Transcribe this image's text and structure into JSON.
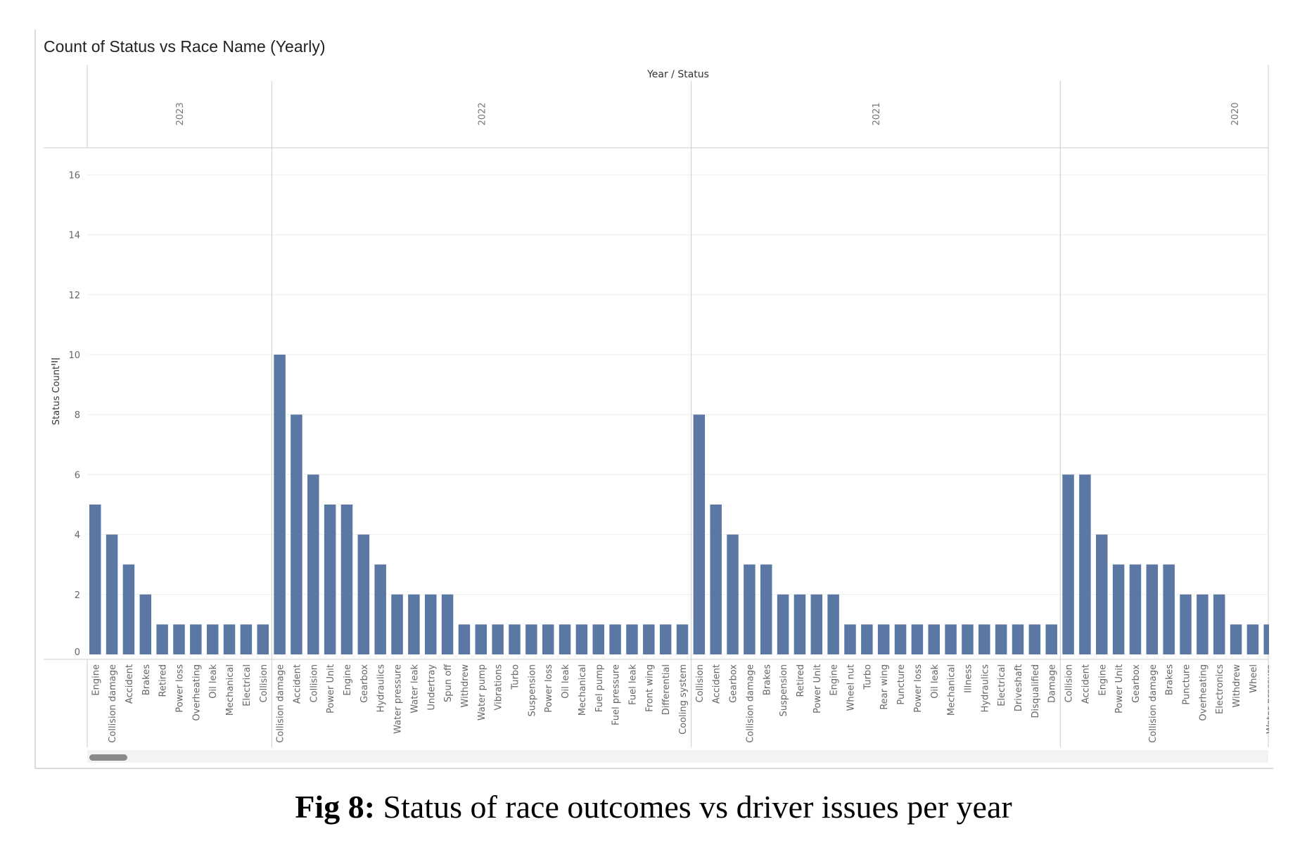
{
  "caption": {
    "prefix": "Fig 8:",
    "text": " Status of race outcomes vs driver issues per year"
  },
  "chart_data": {
    "type": "bar",
    "title": "Count of Status vs Race Name (Yearly)",
    "column_header": "Year / Status",
    "ylabel": "Status Count",
    "ylim": [
      0,
      17
    ],
    "yticks": [
      0,
      2,
      4,
      6,
      8,
      10,
      12,
      14,
      16
    ],
    "grid": true,
    "color": "#5b78a5",
    "groups": [
      {
        "year": "2023",
        "categories": [
          "Engine",
          "Collision damage",
          "Accident",
          "Brakes",
          "Retired",
          "Power loss",
          "Overheating",
          "Oil leak",
          "Mechanical",
          "Electrical",
          "Collision"
        ],
        "values": [
          5,
          4,
          3,
          2,
          1,
          1,
          1,
          1,
          1,
          1,
          1
        ]
      },
      {
        "year": "2022",
        "categories": [
          "Collision damage",
          "Accident",
          "Collision",
          "Power Unit",
          "Engine",
          "Gearbox",
          "Hydraulics",
          "Water pressure",
          "Water leak",
          "Undertray",
          "Spun off",
          "Withdrew",
          "Water pump",
          "Vibrations",
          "Turbo",
          "Suspension",
          "Power loss",
          "Oil leak",
          "Mechanical",
          "Fuel pump",
          "Fuel pressure",
          "Fuel leak",
          "Front wing",
          "Differential",
          "Cooling system"
        ],
        "values": [
          10,
          8,
          6,
          5,
          5,
          4,
          3,
          2,
          2,
          2,
          2,
          1,
          1,
          1,
          1,
          1,
          1,
          1,
          1,
          1,
          1,
          1,
          1,
          1,
          1
        ]
      },
      {
        "year": "2021",
        "categories": [
          "Collision",
          "Accident",
          "Gearbox",
          "Collision damage",
          "Brakes",
          "Suspension",
          "Retired",
          "Power Unit",
          "Engine",
          "Wheel nut",
          "Turbo",
          "Rear wing",
          "Puncture",
          "Power loss",
          "Oil leak",
          "Mechanical",
          "Illness",
          "Hydraulics",
          "Electrical",
          "Driveshaft",
          "Disqualified",
          "Damage"
        ],
        "values": [
          8,
          5,
          4,
          3,
          3,
          2,
          2,
          2,
          2,
          1,
          1,
          1,
          1,
          1,
          1,
          1,
          1,
          1,
          1,
          1,
          1,
          1
        ]
      },
      {
        "year": "2020",
        "categories": [
          "Collision",
          "Accident",
          "Engine",
          "Power Unit",
          "Gearbox",
          "Collision damage",
          "Brakes",
          "Puncture",
          "Overheating",
          "Electronics",
          "Withdrew",
          "Wheel",
          "Water pressure"
        ],
        "values": [
          6,
          6,
          4,
          3,
          3,
          3,
          3,
          2,
          2,
          2,
          1,
          1,
          1
        ]
      }
    ]
  }
}
